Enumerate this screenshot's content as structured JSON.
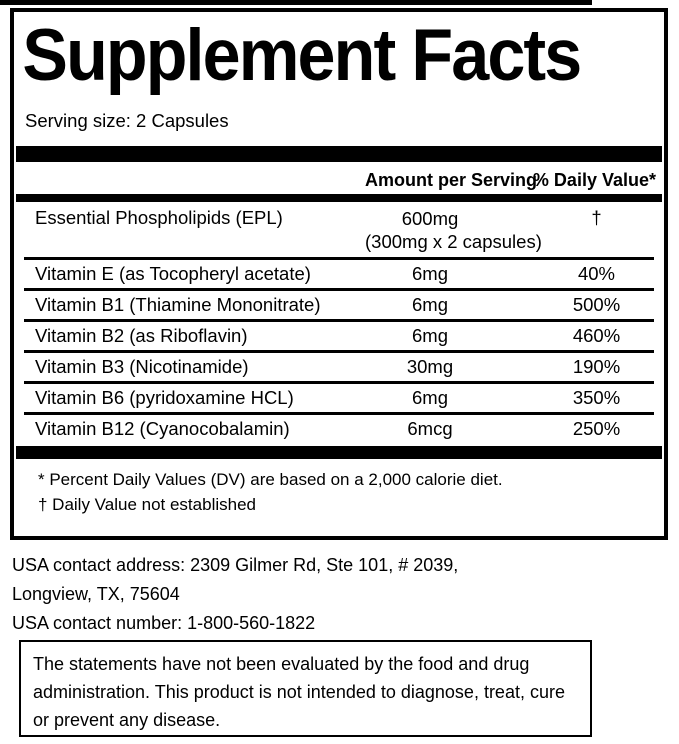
{
  "label": {
    "title": "Supplement Facts",
    "serving_size": "Serving size: 2 Capsules",
    "columns": {
      "amount": "Amount per Serving",
      "dv": "% Daily Value*"
    },
    "rows": [
      {
        "name": "Essential Phospholipids (EPL)",
        "amount": "600mg",
        "amount_note": "(300mg x 2 capsules)",
        "dv": "†"
      },
      {
        "name": "Vitamin E (as Tocopheryl acetate)",
        "amount": "6mg",
        "dv": "40%"
      },
      {
        "name": "Vitamin B1 (Thiamine Mononitrate)",
        "amount": "6mg",
        "dv": "500%"
      },
      {
        "name": "Vitamin B2 (as Riboflavin)",
        "amount": "6mg",
        "dv": "460%"
      },
      {
        "name": "Vitamin B3 (Nicotinamide)",
        "amount": "30mg",
        "dv": "190%"
      },
      {
        "name": "Vitamin B6 (pyridoxamine HCL)",
        "amount": "6mg",
        "dv": "350%"
      },
      {
        "name": "Vitamin B12 (Cyanocobalamin)",
        "amount": "6mcg",
        "dv": "250%"
      }
    ],
    "footnotes": [
      "* Percent Daily Values (DV) are based on a 2,000 calorie diet.",
      "† Daily Value not established"
    ],
    "colors": {
      "rule": "#000000",
      "background": "#ffffff",
      "text": "#000000"
    }
  },
  "contact": {
    "address_line1": "USA contact address: 2309 Gilmer Rd, Ste 101, # 2039,",
    "address_line2": "Longview, TX, 75604",
    "phone": "USA contact number: 1-800-560-1822"
  },
  "disclaimer": "The statements have not been evaluated by the food and drug administration. This product is not intended to diagnose, treat, cure or prevent any disease."
}
